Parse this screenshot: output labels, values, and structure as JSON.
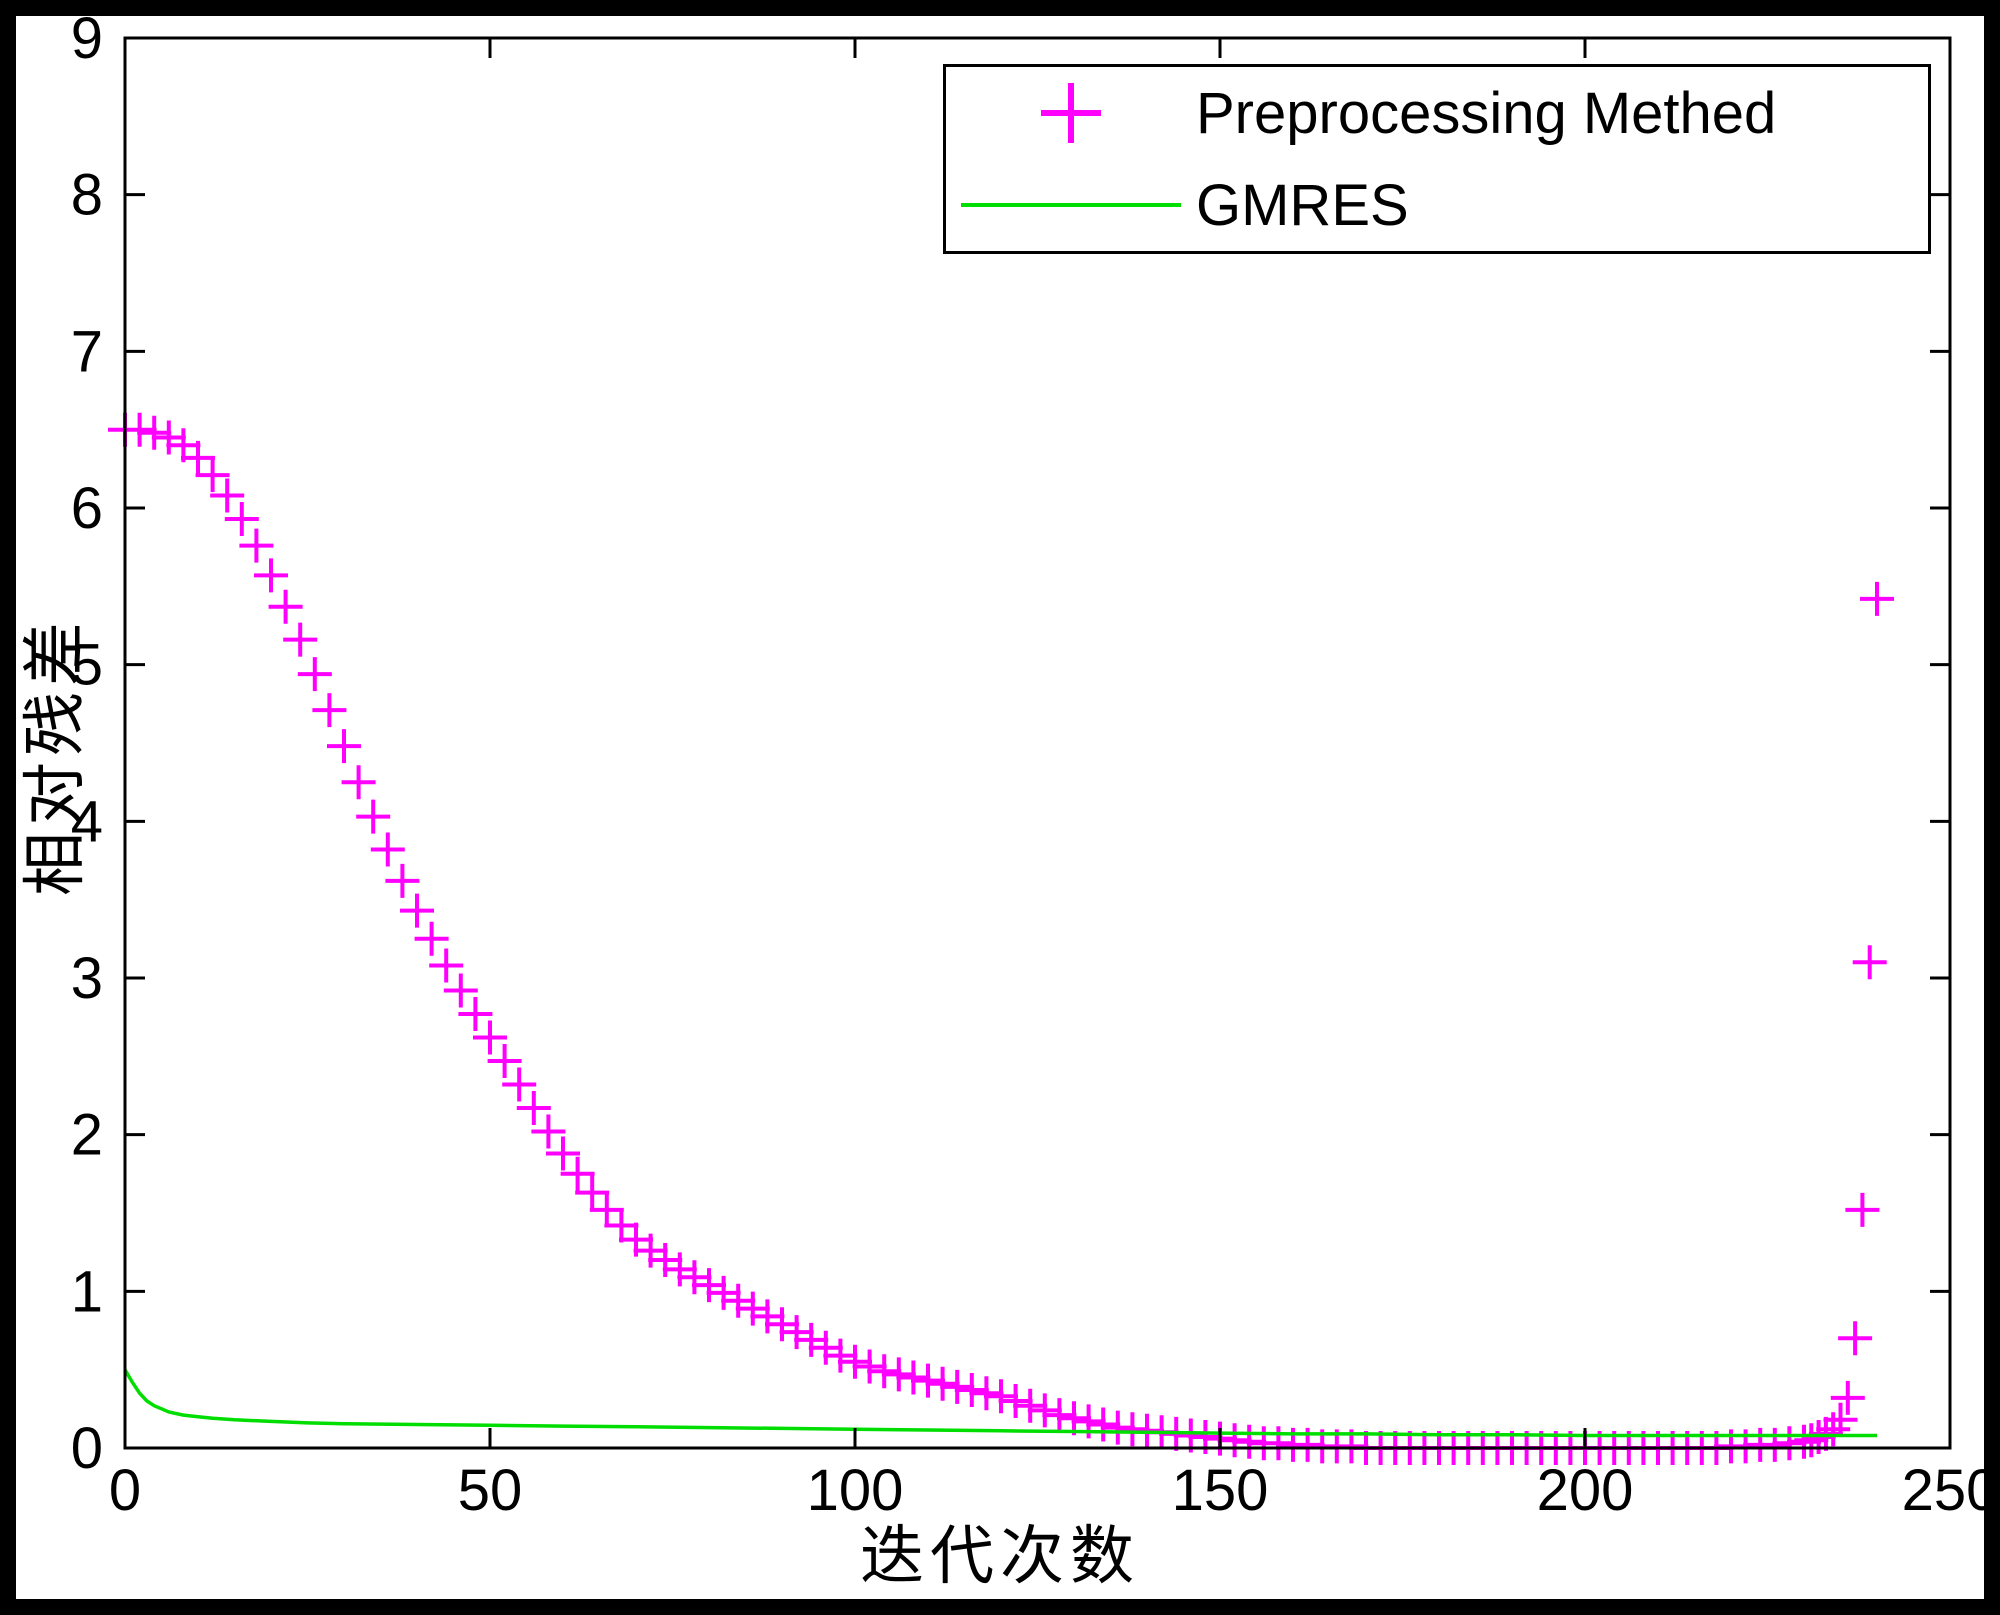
{
  "chart_data": {
    "type": "scatter",
    "title": "",
    "xlabel": "迭代次数",
    "ylabel": "相对残差",
    "xlim": [
      0,
      250
    ],
    "ylim": [
      0,
      9
    ],
    "xticks": [
      0,
      50,
      100,
      150,
      200,
      250
    ],
    "yticks": [
      0,
      1,
      2,
      3,
      4,
      5,
      6,
      7,
      8,
      9
    ],
    "grid": false,
    "legend_position": "top-right",
    "axis_color": "#000000",
    "background_color": "#ffffff",
    "series": [
      {
        "name": "Preprocessing Methed",
        "type": "scatter",
        "marker": "plus",
        "color": "#ff00ff",
        "points": [
          [
            0,
            6.5
          ],
          [
            2,
            6.5
          ],
          [
            4,
            6.48
          ],
          [
            6,
            6.45
          ],
          [
            8,
            6.4
          ],
          [
            10,
            6.32
          ],
          [
            12,
            6.21
          ],
          [
            14,
            6.08
          ],
          [
            16,
            5.93
          ],
          [
            18,
            5.76
          ],
          [
            20,
            5.57
          ],
          [
            22,
            5.37
          ],
          [
            24,
            5.16
          ],
          [
            26,
            4.94
          ],
          [
            28,
            4.71
          ],
          [
            30,
            4.48
          ],
          [
            32,
            4.25
          ],
          [
            34,
            4.03
          ],
          [
            36,
            3.82
          ],
          [
            38,
            3.62
          ],
          [
            40,
            3.43
          ],
          [
            42,
            3.25
          ],
          [
            44,
            3.08
          ],
          [
            46,
            2.92
          ],
          [
            48,
            2.77
          ],
          [
            50,
            2.62
          ],
          [
            52,
            2.47
          ],
          [
            54,
            2.32
          ],
          [
            56,
            2.17
          ],
          [
            58,
            2.02
          ],
          [
            60,
            1.88
          ],
          [
            62,
            1.75
          ],
          [
            64,
            1.63
          ],
          [
            66,
            1.52
          ],
          [
            68,
            1.42
          ],
          [
            70,
            1.33
          ],
          [
            72,
            1.26
          ],
          [
            74,
            1.2
          ],
          [
            76,
            1.14
          ],
          [
            78,
            1.09
          ],
          [
            80,
            1.04
          ],
          [
            82,
            0.99
          ],
          [
            84,
            0.94
          ],
          [
            86,
            0.89
          ],
          [
            88,
            0.84
          ],
          [
            90,
            0.79
          ],
          [
            92,
            0.74
          ],
          [
            94,
            0.69
          ],
          [
            96,
            0.64
          ],
          [
            98,
            0.59
          ],
          [
            100,
            0.55
          ],
          [
            102,
            0.52
          ],
          [
            104,
            0.49
          ],
          [
            106,
            0.47
          ],
          [
            108,
            0.45
          ],
          [
            110,
            0.43
          ],
          [
            112,
            0.41
          ],
          [
            114,
            0.39
          ],
          [
            116,
            0.37
          ],
          [
            118,
            0.35
          ],
          [
            120,
            0.33
          ],
          [
            122,
            0.3
          ],
          [
            124,
            0.27
          ],
          [
            126,
            0.24
          ],
          [
            128,
            0.21
          ],
          [
            130,
            0.19
          ],
          [
            132,
            0.17
          ],
          [
            134,
            0.15
          ],
          [
            136,
            0.13
          ],
          [
            138,
            0.12
          ],
          [
            140,
            0.11
          ],
          [
            142,
            0.1
          ],
          [
            144,
            0.09
          ],
          [
            146,
            0.08
          ],
          [
            148,
            0.07
          ],
          [
            150,
            0.06
          ],
          [
            152,
            0.05
          ],
          [
            154,
            0.04
          ],
          [
            156,
            0.03
          ],
          [
            158,
            0.03
          ],
          [
            160,
            0.02
          ],
          [
            162,
            0.02
          ],
          [
            164,
            0.01
          ],
          [
            166,
            0.01
          ],
          [
            168,
            0.01
          ],
          [
            170,
            0.0
          ],
          [
            172,
            0.0
          ],
          [
            174,
            0.0
          ],
          [
            176,
            0.0
          ],
          [
            178,
            0.0
          ],
          [
            180,
            0.0
          ],
          [
            182,
            0.0
          ],
          [
            184,
            0.0
          ],
          [
            186,
            0.0
          ],
          [
            188,
            0.0
          ],
          [
            190,
            0.0
          ],
          [
            192,
            0.0
          ],
          [
            194,
            0.0
          ],
          [
            196,
            0.0
          ],
          [
            198,
            0.0
          ],
          [
            200,
            0.0
          ],
          [
            202,
            0.0
          ],
          [
            204,
            0.0
          ],
          [
            206,
            0.0
          ],
          [
            208,
            0.0
          ],
          [
            210,
            0.0
          ],
          [
            212,
            0.0
          ],
          [
            214,
            0.0
          ],
          [
            216,
            0.0
          ],
          [
            218,
            0.0
          ],
          [
            220,
            0.01
          ],
          [
            222,
            0.01
          ],
          [
            224,
            0.02
          ],
          [
            226,
            0.02
          ],
          [
            228,
            0.03
          ],
          [
            230,
            0.04
          ],
          [
            231,
            0.05
          ],
          [
            232,
            0.07
          ],
          [
            233,
            0.09
          ],
          [
            234,
            0.12
          ],
          [
            235,
            0.18
          ],
          [
            236,
            0.32
          ],
          [
            237,
            0.7
          ],
          [
            238,
            1.52
          ],
          [
            239,
            3.1
          ],
          [
            240,
            5.42
          ]
        ]
      },
      {
        "name": "GMRES",
        "type": "line",
        "marker": "none",
        "color": "#00dd00",
        "points": [
          [
            0,
            0.5
          ],
          [
            1,
            0.42
          ],
          [
            2,
            0.35
          ],
          [
            3,
            0.3
          ],
          [
            4,
            0.27
          ],
          [
            5,
            0.25
          ],
          [
            6,
            0.23
          ],
          [
            8,
            0.21
          ],
          [
            10,
            0.2
          ],
          [
            12,
            0.19
          ],
          [
            15,
            0.18
          ],
          [
            20,
            0.17
          ],
          [
            25,
            0.16
          ],
          [
            30,
            0.155
          ],
          [
            40,
            0.15
          ],
          [
            50,
            0.145
          ],
          [
            60,
            0.14
          ],
          [
            70,
            0.135
          ],
          [
            80,
            0.13
          ],
          [
            90,
            0.125
          ],
          [
            100,
            0.12
          ],
          [
            110,
            0.115
          ],
          [
            120,
            0.11
          ],
          [
            130,
            0.105
          ],
          [
            140,
            0.1
          ],
          [
            150,
            0.095
          ],
          [
            160,
            0.09
          ],
          [
            170,
            0.09
          ],
          [
            180,
            0.085
          ],
          [
            190,
            0.085
          ],
          [
            200,
            0.08
          ],
          [
            210,
            0.08
          ],
          [
            220,
            0.08
          ],
          [
            230,
            0.08
          ],
          [
            240,
            0.08
          ]
        ]
      }
    ]
  }
}
